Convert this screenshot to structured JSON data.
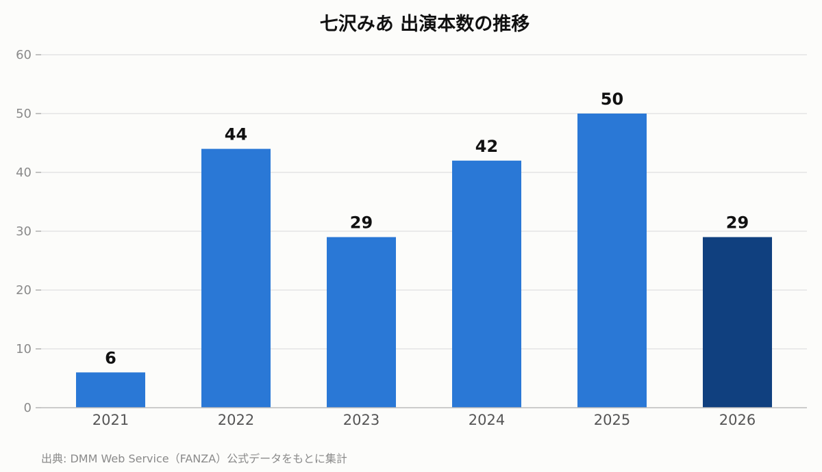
{
  "chart_data": {
    "type": "bar",
    "title": "七沢みあ 出演本数の推移",
    "categories": [
      "2021",
      "2022",
      "2023",
      "2024",
      "2025",
      "2026"
    ],
    "values": [
      6,
      44,
      29,
      42,
      50,
      29
    ],
    "xlabel": "",
    "ylabel": "",
    "ylim": [
      0,
      60
    ],
    "yticks": [
      0,
      10,
      20,
      30,
      40,
      50,
      60
    ],
    "grid": true,
    "data_labels": true,
    "colors": {
      "bar": "#2a78d6",
      "bar_highlight": "#10407f",
      "highlight_index": 5,
      "grid": "#e0e0e0",
      "axis": "#bbbbbb"
    }
  },
  "source_note": "出典: DMM Web Service（FANZA）公式データをもとに集計"
}
